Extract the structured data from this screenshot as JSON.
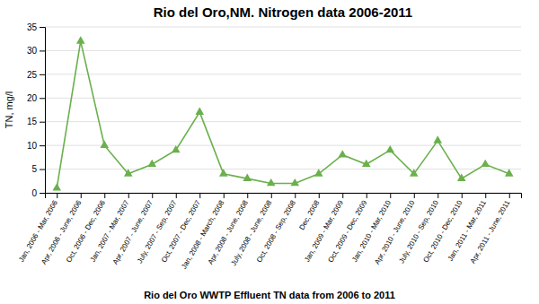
{
  "chart_data": {
    "type": "line",
    "title": "Rio del Oro,NM. Nitrogen data 2006-2011",
    "ylabel": "TN, mg/l",
    "caption": "Rio del Oro WWTP Effluent TN data from 2006 to 2011",
    "categories": [
      "Jan, 2006 - Mar, 2006",
      "Apr, 2006 - June, 2006",
      "Oct, 2006 - Dec, 2006",
      "Jan, 2007 - Mar, 2007",
      "Apr, 2007 - June, 2007",
      "July, 2007 - Sep, 2007",
      "Oct, 2007 - Dec, 2007",
      "Jan, 2008 - March, 2008",
      "Apr, 2008 - June, 2008",
      "July, 2008 - June, 2008",
      "Oct, 2008 - Sep, 2008",
      "Dec, 2008",
      "Jan, 2009 - Mar, 2009",
      "Oct, 2009 - Dec, 2009",
      "Jan, 2010 - Mar, 2010",
      "Apr, 2010 - June, 2010",
      "July, 2010 - Sep, 2010",
      "Oct, 2010 - Dec, 2010",
      "Jan, 2011 - Mar, 2011",
      "Apr, 2011 - June, 2011"
    ],
    "values": [
      1,
      32,
      10,
      4,
      6,
      9,
      17,
      4,
      3,
      2,
      2,
      4,
      8,
      6,
      9,
      4,
      11,
      3,
      6,
      4
    ],
    "color": "#6ab04c",
    "marker": "triangle",
    "ylim": [
      0,
      35
    ],
    "yticks": [
      0,
      5,
      10,
      15,
      20,
      25,
      30,
      35
    ],
    "grid": "y"
  }
}
